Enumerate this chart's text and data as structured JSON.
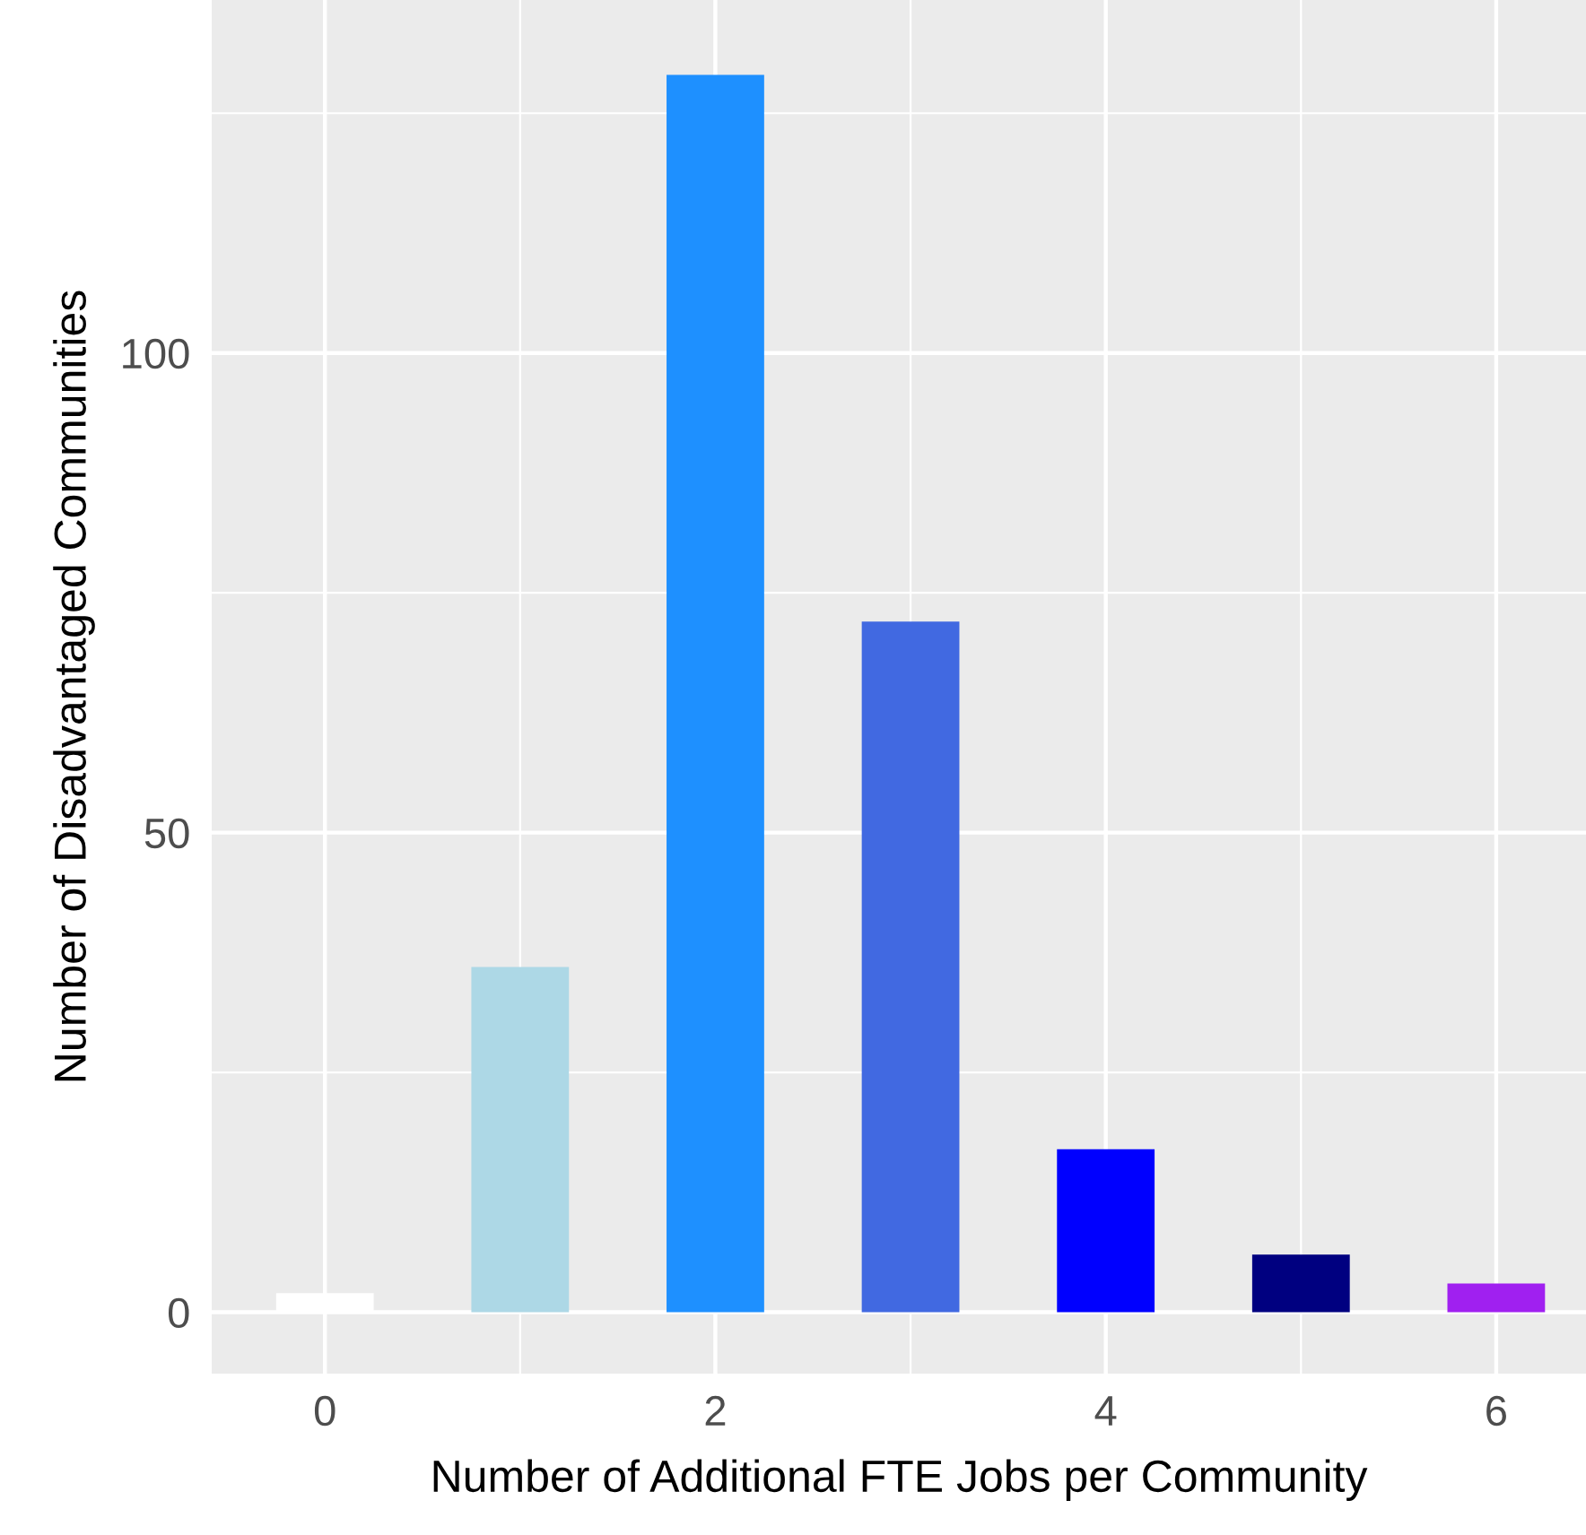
{
  "chart_data": {
    "type": "bar",
    "xlabel": "Number of Additional FTE Jobs per Community",
    "ylabel": "Number of Disadvantaged Communities",
    "x": [
      0,
      1,
      2,
      3,
      4,
      5,
      6
    ],
    "values": [
      2,
      36,
      129,
      72,
      17,
      6,
      3
    ],
    "colors": [
      "#ffffff",
      "#add8e6",
      "#1e90ff",
      "#4169e1",
      "#0000ff",
      "#000080",
      "#a020f0"
    ],
    "xlim": [
      -0.58,
      6.46
    ],
    "xticks": [
      0,
      2,
      4,
      6
    ],
    "ylim": [
      -6.4,
      136.8
    ],
    "yticks": [
      0,
      50,
      100
    ],
    "grid": true
  }
}
